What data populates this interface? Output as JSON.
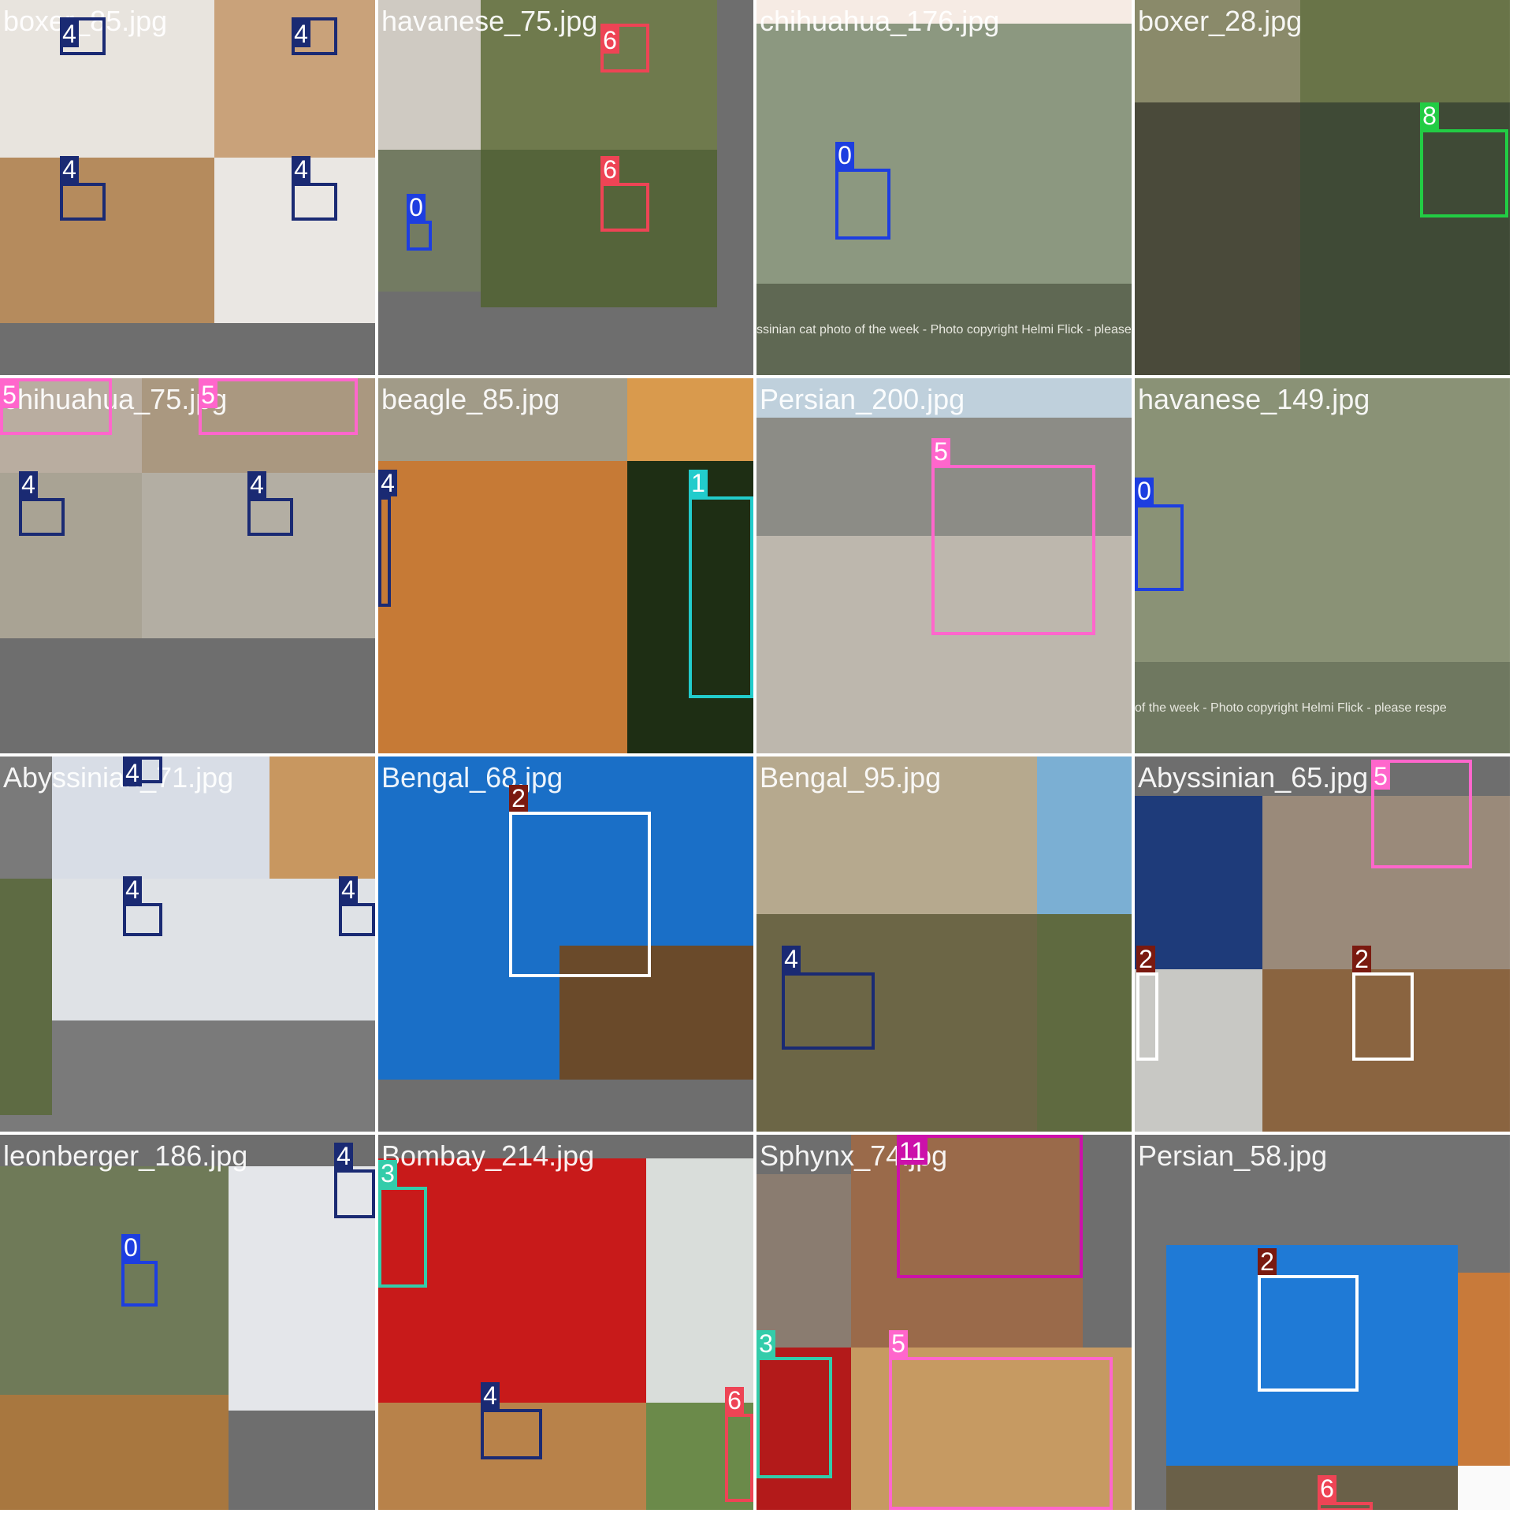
{
  "tiles": [
    {
      "label": "boxer_85.jpg",
      "bg": "#6e6e6e",
      "pieces": [
        {
          "c": "#e8e4de"
        },
        {
          "c": "#c9a27a"
        },
        {
          "c": "#b58b5d"
        },
        {
          "c": "#eae7e3"
        }
      ],
      "boxes": [
        {
          "id": "4",
          "color": "#1a2a73"
        },
        {
          "id": "4",
          "color": "#1a2a73"
        },
        {
          "id": "4",
          "color": "#1a2a73"
        },
        {
          "id": "4",
          "color": "#1a2a73"
        }
      ]
    },
    {
      "label": "havanese_75.jpg",
      "bg": "#6e6e6e",
      "pieces": [
        {
          "c": "#cfcac2"
        },
        {
          "c": "#6f7a4d"
        },
        {
          "c": "#737b62"
        },
        {
          "c": "#55643a"
        }
      ],
      "boxes": [
        {
          "id": "6",
          "color": "#ee4455"
        },
        {
          "id": "6",
          "color": "#ee4455"
        },
        {
          "id": "0",
          "color": "#1d3ee0"
        }
      ]
    },
    {
      "label": "chihuahua_176.jpg",
      "bg": "#6e6e6e",
      "pieces": [
        {
          "c": "#f6ebe4"
        },
        {
          "c": "#8c9880"
        },
        {
          "c": "#5f6853"
        }
      ],
      "caption": "ssinian cat photo of the week - Photo copyright Helmi Flick - please",
      "boxes": [
        {
          "id": "0",
          "color": "#1d3ee0"
        }
      ]
    },
    {
      "label": "boxer_28.jpg",
      "bg": "#6e6e6e",
      "pieces": [
        {
          "c": "#8a8a6a"
        },
        {
          "c": "#697448"
        },
        {
          "c": "#4a4a3a"
        },
        {
          "c": "#3f4a36"
        }
      ],
      "boxes": [
        {
          "id": "8",
          "color": "#22cc44"
        }
      ]
    },
    {
      "label": "chihuahua_75.jpg",
      "bg": "#6e6e6e",
      "pieces": [
        {
          "c": "#b9ada0"
        },
        {
          "c": "#aa9880"
        },
        {
          "c": "#a9a394"
        },
        {
          "c": "#b3aea3"
        }
      ],
      "boxes": [
        {
          "id": "5",
          "color": "#ff66cc"
        },
        {
          "id": "5",
          "color": "#ff66cc"
        },
        {
          "id": "4",
          "color": "#1a2a73"
        },
        {
          "id": "4",
          "color": "#1a2a73"
        }
      ]
    },
    {
      "label": "beagle_85.jpg",
      "bg": "#6e6e6e",
      "pieces": [
        {
          "c": "#a19b88"
        },
        {
          "c": "#d99a4d"
        },
        {
          "c": "#c67a36"
        },
        {
          "c": "#1e2e14"
        }
      ],
      "boxes": [
        {
          "id": "4",
          "color": "#1a2a73"
        },
        {
          "id": "1",
          "color": "#22cccc"
        }
      ]
    },
    {
      "label": "Persian_200.jpg",
      "bg": "#6e6e6e",
      "pieces": [
        {
          "c": "#bfd0dc"
        },
        {
          "c": "#8c8c86"
        },
        {
          "c": "#bdb7ad"
        }
      ],
      "boxes": [
        {
          "id": "5",
          "color": "#ff66cc"
        }
      ]
    },
    {
      "label": "havanese_149.jpg",
      "bg": "#6e6e6e",
      "pieces": [
        {
          "c": "#8a9276"
        },
        {
          "c": "#6f7860"
        }
      ],
      "caption": "of the week - Photo copyright Helmi Flick - please respe",
      "boxes": [
        {
          "id": "0",
          "color": "#1d3ee0"
        }
      ]
    },
    {
      "label": "Abyssinian_71.jpg",
      "bg": "#7a7a7a",
      "pieces": [
        {
          "c": "#d8dde6"
        },
        {
          "c": "#5e6b43"
        },
        {
          "c": "#c89760"
        },
        {
          "c": "#dfe2e6"
        }
      ],
      "boxes": [
        {
          "id": "4",
          "color": "#1a2a73"
        },
        {
          "id": "4",
          "color": "#1a2a73"
        },
        {
          "id": "4",
          "color": "#1a2a73"
        }
      ]
    },
    {
      "label": "Bengal_68.jpg",
      "bg": "#6e6e6e",
      "pieces": [
        {
          "c": "#1a6fc7"
        },
        {
          "c": "#6a4a2a"
        }
      ],
      "boxes": [
        {
          "id": "2",
          "color": "#ffffff",
          "tagColor": "#7a1a10",
          "tagText": "#ffffff"
        }
      ]
    },
    {
      "label": "Bengal_95.jpg",
      "bg": "#6e6e6e",
      "pieces": [
        {
          "c": "#b6a98e"
        },
        {
          "c": "#7bafd3"
        },
        {
          "c": "#6c6646"
        },
        {
          "c": "#5f6a40"
        }
      ],
      "boxes": [
        {
          "id": "4",
          "color": "#1a2a73"
        }
      ]
    },
    {
      "label": "Abyssinian_65.jpg",
      "bg": "#6e6e6e",
      "pieces": [
        {
          "c": "#1e3b7a"
        },
        {
          "c": "#9a8a7a"
        },
        {
          "c": "#c8c8c4"
        },
        {
          "c": "#8a6440"
        }
      ],
      "boxes": [
        {
          "id": "5",
          "color": "#ff66cc"
        },
        {
          "id": "2",
          "color": "#ffffff",
          "tagColor": "#7a1a10",
          "tagText": "#ffffff"
        },
        {
          "id": "2",
          "color": "#ffffff",
          "tagColor": "#7a1a10",
          "tagText": "#ffffff"
        }
      ]
    },
    {
      "label": "leonberger_186.jpg",
      "bg": "#6e6e6e",
      "pieces": [
        {
          "c": "#6f7a58"
        },
        {
          "c": "#e4e6ea"
        },
        {
          "c": "#a8773f"
        }
      ],
      "boxes": [
        {
          "id": "0",
          "color": "#1d3ee0"
        },
        {
          "id": "4",
          "color": "#1a2a73"
        }
      ]
    },
    {
      "label": "Bombay_214.jpg",
      "bg": "#6e6e6e",
      "pieces": [
        {
          "c": "#c81a1a"
        },
        {
          "c": "#d9ddda"
        },
        {
          "c": "#b8824a"
        },
        {
          "c": "#6b8a4a"
        }
      ],
      "boxes": [
        {
          "id": "3",
          "color": "#33ccaa"
        },
        {
          "id": "4",
          "color": "#1a2a73"
        },
        {
          "id": "6",
          "color": "#ee4455"
        }
      ]
    },
    {
      "label": "Sphynx_74.jpg",
      "bg": "#6e6e6e",
      "pieces": [
        {
          "c": "#8a7c70"
        },
        {
          "c": "#9a6a4a"
        },
        {
          "c": "#b31a1a"
        },
        {
          "c": "#c69a62"
        }
      ],
      "boxes": [
        {
          "id": "11",
          "color": "#cc11aa"
        },
        {
          "id": "3",
          "color": "#33ccaa"
        },
        {
          "id": "5",
          "color": "#ff66cc"
        }
      ]
    },
    {
      "label": "Persian_58.jpg",
      "bg": "#727272",
      "pieces": [
        {
          "c": "#1f7ad6"
        },
        {
          "c": "#c87a3a"
        },
        {
          "c": "#6a6048"
        },
        {
          "c": "#fafafa"
        }
      ],
      "boxes": [
        {
          "id": "2",
          "color": "#ffffff",
          "tagColor": "#7a1a10",
          "tagText": "#ffffff"
        },
        {
          "id": "6",
          "color": "#ee4455"
        }
      ]
    }
  ]
}
